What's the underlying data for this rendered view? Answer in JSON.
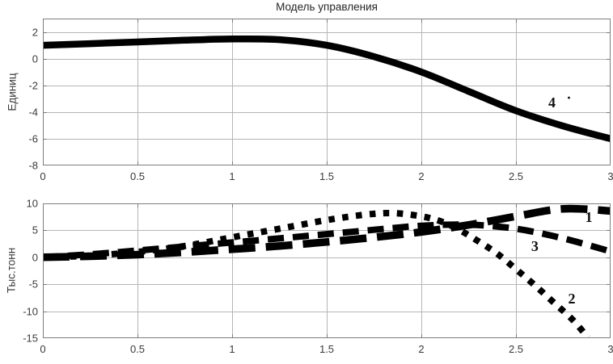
{
  "figure_title": "Модель управления",
  "colors": {
    "line": "#000000",
    "grid": "#b5b5b5",
    "axis_box": "#7d7d7d",
    "tick_label": "#3a3a3a",
    "title": "#262626",
    "annotation": "#111111",
    "background": "#ffffff"
  },
  "chart_data": [
    {
      "type": "line",
      "title": "Модель управления",
      "xlabel": "",
      "ylabel": "Единиц",
      "xlim": [
        0,
        3
      ],
      "ylim": [
        -8,
        3
      ],
      "xticks": [
        0,
        0.5,
        1,
        1.5,
        2,
        2.5,
        3
      ],
      "xtick_labels": [
        "0",
        "0.5",
        "1",
        "1.5",
        "2",
        "2.5",
        "3"
      ],
      "yticks": [
        2,
        0,
        -2,
        -4,
        -6,
        -8
      ],
      "ytick_labels": [
        "2",
        "0",
        "-2",
        "-4",
        "-6",
        "-8"
      ],
      "grid": true,
      "legend": "none",
      "series": [
        {
          "name": "4",
          "style": "solid",
          "x": [
            0,
            0.25,
            0.5,
            0.75,
            1,
            1.25,
            1.5,
            1.75,
            2,
            2.25,
            2.5,
            2.75,
            3
          ],
          "y": [
            1.0,
            1.12,
            1.25,
            1.38,
            1.47,
            1.42,
            1.0,
            0.15,
            -1.0,
            -2.45,
            -3.9,
            -5.05,
            -6.0
          ]
        }
      ],
      "annotations": [
        {
          "text": "4",
          "x": 2.69,
          "y": -3.3
        },
        {
          "text": "·",
          "x": 2.78,
          "y": -2.9
        }
      ]
    },
    {
      "type": "line",
      "title": "",
      "xlabel": "",
      "ylabel": "Тыс.тонн",
      "xlim": [
        0,
        3
      ],
      "ylim": [
        -15,
        10
      ],
      "xticks": [
        0,
        0.5,
        1,
        1.5,
        2,
        2.5,
        3
      ],
      "xtick_labels": [
        "0",
        "0.5",
        "1",
        "1.5",
        "2",
        "2.5",
        "3"
      ],
      "yticks": [
        10,
        5,
        0,
        -5,
        -10,
        -15
      ],
      "ytick_labels": [
        "10",
        "5",
        "0",
        "-5",
        "-10",
        "-15"
      ],
      "grid": true,
      "legend": "none",
      "series": [
        {
          "name": "1",
          "style": "long-dash",
          "x": [
            0,
            0.25,
            0.5,
            0.75,
            1,
            1.25,
            1.5,
            1.75,
            2,
            2.25,
            2.5,
            2.75,
            3
          ],
          "y": [
            0,
            0.2,
            0.5,
            0.95,
            1.5,
            2.1,
            2.85,
            3.7,
            4.7,
            6.0,
            7.6,
            9.0,
            8.6
          ]
        },
        {
          "name": "3",
          "style": "dash",
          "x": [
            0,
            0.25,
            0.5,
            0.75,
            1,
            1.25,
            1.5,
            1.75,
            2,
            2.25,
            2.5,
            2.75,
            3
          ],
          "y": [
            0,
            0.55,
            1.25,
            2.0,
            2.75,
            3.5,
            4.3,
            5.1,
            5.85,
            6.05,
            5.3,
            3.5,
            1.1
          ]
        },
        {
          "name": "2",
          "style": "dotted",
          "x": [
            0,
            0.25,
            0.5,
            0.75,
            1,
            1.25,
            1.5,
            1.7,
            1.85,
            2,
            2.1,
            2.2,
            2.3,
            2.4,
            2.5,
            2.6,
            2.7,
            2.8,
            2.88
          ],
          "y": [
            0,
            0.3,
            1.0,
            2.1,
            3.7,
            5.3,
            6.9,
            7.9,
            8.2,
            7.6,
            6.7,
            5.1,
            3.0,
            0.7,
            -2.2,
            -5.2,
            -8.4,
            -11.6,
            -14.9
          ]
        }
      ],
      "annotations": [
        {
          "text": "1",
          "x": 2.885,
          "y": 7.45
        },
        {
          "text": "3",
          "x": 2.6,
          "y": 2.05
        },
        {
          "text": "2",
          "x": 2.795,
          "y": -7.7
        }
      ]
    }
  ]
}
